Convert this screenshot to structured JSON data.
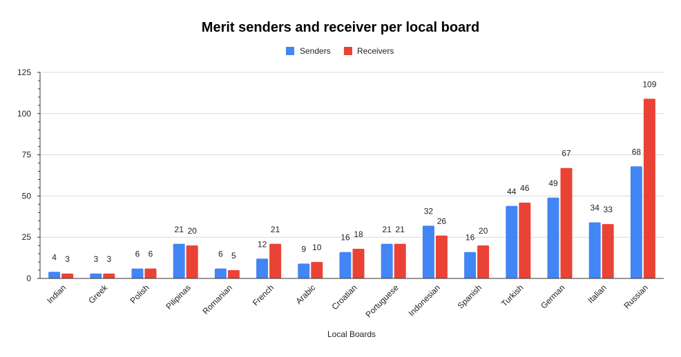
{
  "chart_data": {
    "type": "bar",
    "title": "Merit senders and receiver per local board",
    "xlabel": "Local Boards",
    "ylabel": "",
    "ylim": [
      0,
      125
    ],
    "yticks": [
      0,
      25,
      50,
      75,
      100,
      125
    ],
    "grid": true,
    "legend_position": "top",
    "categories": [
      "Indian",
      "Greek",
      "Polish",
      "Pilipinas",
      "Romanian",
      "French",
      "Arabic",
      "Croatian",
      "Portuguese",
      "Indonesian",
      "Spanish",
      "Turkish",
      "German",
      "Italian",
      "Russian"
    ],
    "series": [
      {
        "name": "Senders",
        "color": "#4285f4",
        "values": [
          4,
          3,
          6,
          21,
          6,
          12,
          9,
          16,
          21,
          32,
          16,
          44,
          49,
          34,
          68
        ]
      },
      {
        "name": "Receivers",
        "color": "#ea4335",
        "values": [
          3,
          3,
          6,
          20,
          5,
          21,
          10,
          18,
          21,
          26,
          20,
          46,
          67,
          33,
          109
        ]
      }
    ]
  }
}
